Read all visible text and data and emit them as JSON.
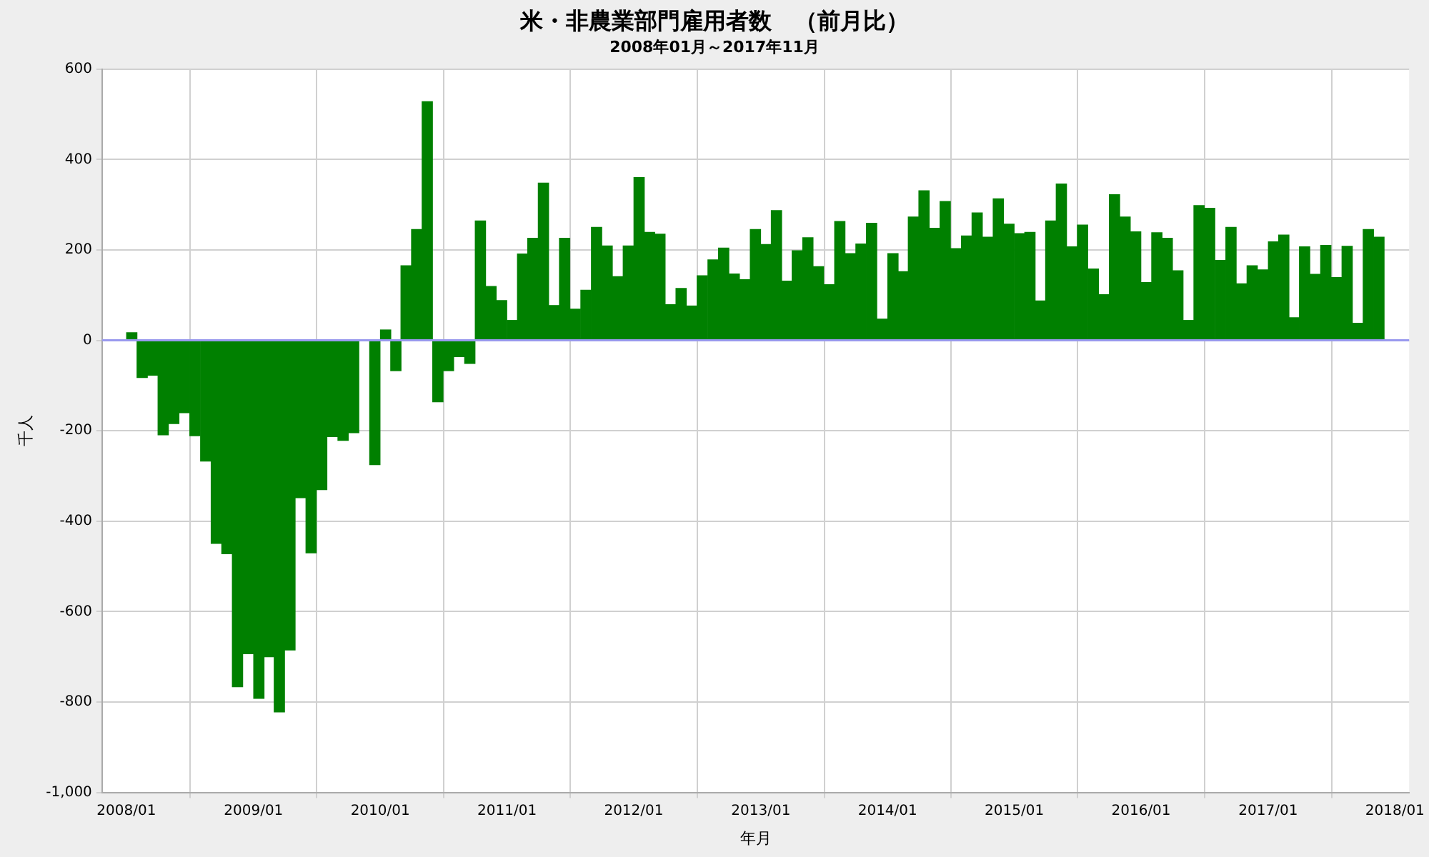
{
  "chart_data": {
    "type": "bar",
    "title": "米・非農業部門雇用者数　（前月比）",
    "subtitle": "2008年01月～2017年11月",
    "xlabel": "年月",
    "ylabel": "千人",
    "x": [
      "2008-01",
      "2008-02",
      "2008-03",
      "2008-04",
      "2008-05",
      "2008-06",
      "2008-07",
      "2008-08",
      "2008-09",
      "2008-10",
      "2008-11",
      "2008-12",
      "2009-01",
      "2009-02",
      "2009-03",
      "2009-04",
      "2009-05",
      "2009-06",
      "2009-07",
      "2009-08",
      "2009-09",
      "2009-10",
      "2009-11",
      "2009-12",
      "2010-01",
      "2010-02",
      "2010-03",
      "2010-04",
      "2010-05",
      "2010-06",
      "2010-07",
      "2010-08",
      "2010-09",
      "2010-10",
      "2010-11",
      "2010-12",
      "2011-01",
      "2011-02",
      "2011-03",
      "2011-04",
      "2011-05",
      "2011-06",
      "2011-07",
      "2011-08",
      "2011-09",
      "2011-10",
      "2011-11",
      "2011-12",
      "2012-01",
      "2012-02",
      "2012-03",
      "2012-04",
      "2012-05",
      "2012-06",
      "2012-07",
      "2012-08",
      "2012-09",
      "2012-10",
      "2012-11",
      "2012-12",
      "2013-01",
      "2013-02",
      "2013-03",
      "2013-04",
      "2013-05",
      "2013-06",
      "2013-07",
      "2013-08",
      "2013-09",
      "2013-10",
      "2013-11",
      "2013-12",
      "2014-01",
      "2014-02",
      "2014-03",
      "2014-04",
      "2014-05",
      "2014-06",
      "2014-07",
      "2014-08",
      "2014-09",
      "2014-10",
      "2014-11",
      "2014-12",
      "2015-01",
      "2015-02",
      "2015-03",
      "2015-04",
      "2015-05",
      "2015-06",
      "2015-07",
      "2015-08",
      "2015-09",
      "2015-10",
      "2015-11",
      "2015-12",
      "2016-01",
      "2016-02",
      "2016-03",
      "2016-04",
      "2016-05",
      "2016-06",
      "2016-07",
      "2016-08",
      "2016-09",
      "2016-10",
      "2016-11",
      "2016-12",
      "2017-01",
      "2017-02",
      "2017-03",
      "2017-04",
      "2017-05",
      "2017-06",
      "2017-07",
      "2017-08",
      "2017-09",
      "2017-10",
      "2017-11"
    ],
    "values": [
      17,
      -82,
      -77,
      -209,
      -184,
      -160,
      -211,
      -267,
      -449,
      -472,
      -766,
      -693,
      -792,
      -700,
      -822,
      -685,
      -348,
      -470,
      -330,
      -213,
      -221,
      -204,
      null,
      -275,
      23,
      -67,
      165,
      245,
      528,
      -136,
      -67,
      -36,
      -51,
      264,
      119,
      88,
      44,
      191,
      226,
      348,
      77,
      226,
      69,
      111,
      250,
      209,
      141,
      209,
      360,
      239,
      235,
      79,
      115,
      76,
      143,
      178,
      204,
      147,
      134,
      245,
      212,
      287,
      131,
      198,
      227,
      163,
      123,
      263,
      192,
      213,
      259,
      47,
      192,
      152,
      273,
      331,
      248,
      307,
      203,
      231,
      282,
      228,
      313,
      257,
      236,
      239,
      87,
      264,
      346,
      207,
      255,
      158,
      101,
      322,
      273,
      240,
      128,
      238,
      226,
      154,
      44,
      298,
      292,
      177,
      250,
      125,
      165,
      156,
      218,
      233,
      50,
      207,
      146,
      210,
      139,
      208,
      38,
      245,
      228
    ],
    "color": "#008000",
    "xlim": [
      "2007-10-23",
      "2018-02-11"
    ],
    "xticks": [
      {
        "value": "2008-01",
        "label": "2008/01"
      },
      {
        "value": "2009-01",
        "label": "2009/01"
      },
      {
        "value": "2010-01",
        "label": "2010/01"
      },
      {
        "value": "2011-01",
        "label": "2011/01"
      },
      {
        "value": "2012-01",
        "label": "2012/01"
      },
      {
        "value": "2013-01",
        "label": "2013/01"
      },
      {
        "value": "2014-01",
        "label": "2014/01"
      },
      {
        "value": "2015-01",
        "label": "2015/01"
      },
      {
        "value": "2016-01",
        "label": "2016/01"
      },
      {
        "value": "2017-01",
        "label": "2017/01"
      },
      {
        "value": "2018-01",
        "label": "2018/01"
      }
    ],
    "ylim": [
      -1000,
      600
    ],
    "yticks": [
      {
        "value": -1000,
        "label": "-1,000"
      },
      -800,
      -600,
      -400,
      -200,
      0,
      200,
      400,
      600
    ],
    "ref_lines": [
      {
        "axis": "y",
        "value": 0,
        "color": "#9999ee"
      }
    ],
    "grid": true
  }
}
